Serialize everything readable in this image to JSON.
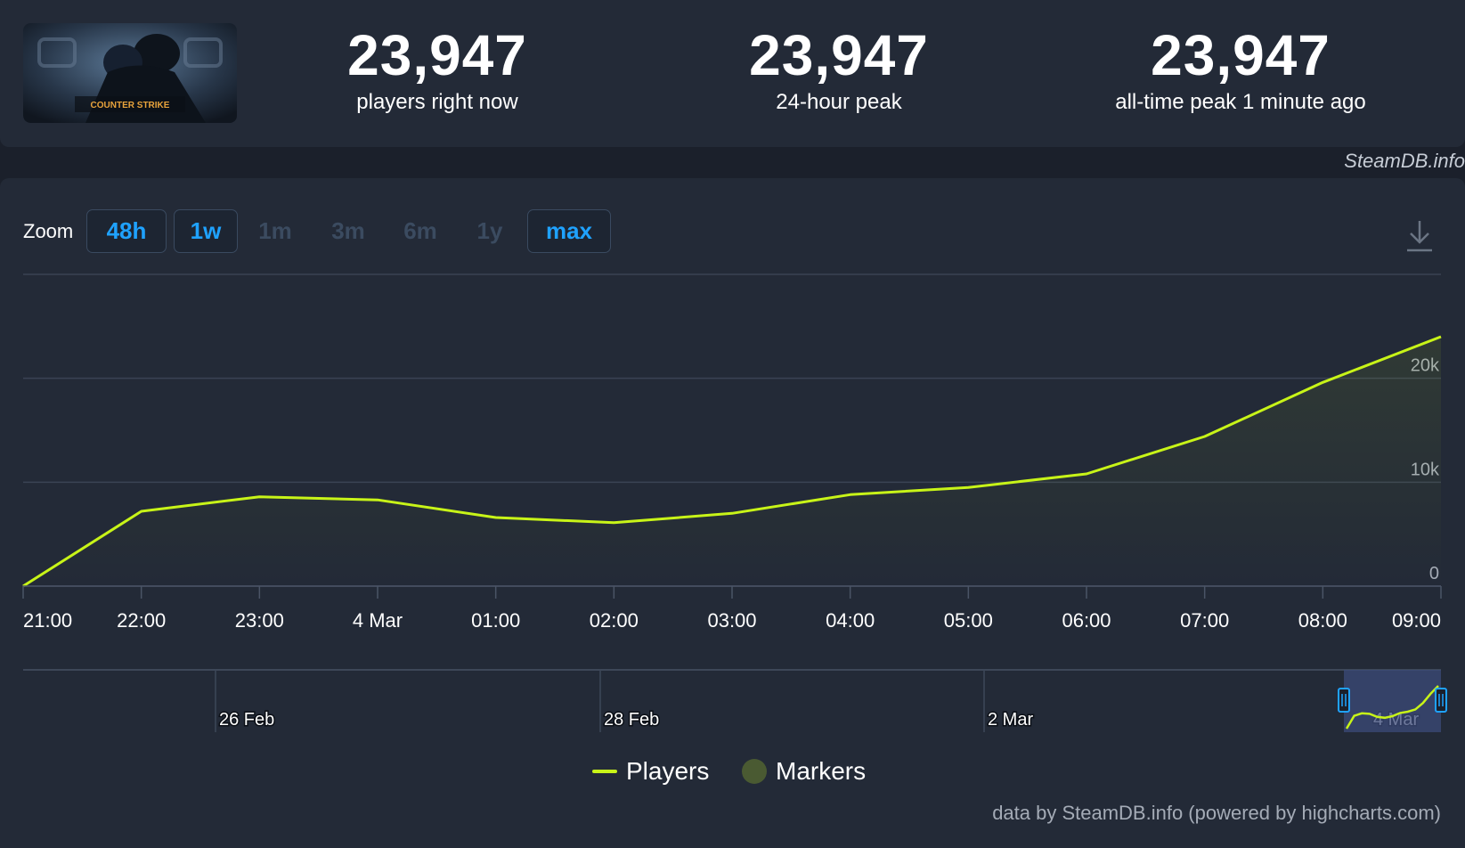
{
  "stats": {
    "current": {
      "value": "23,947",
      "label": "players right now"
    },
    "peak24h": {
      "value": "23,947",
      "label": "24-hour peak"
    },
    "alltime": {
      "value": "23,947",
      "label": "all-time peak 1 minute ago"
    }
  },
  "logo_text": "COUNTER STRIKE",
  "credit": "SteamDB.info",
  "zoom": {
    "label": "Zoom",
    "buttons": [
      {
        "label": "48h",
        "active": true
      },
      {
        "label": "1w",
        "active": true
      },
      {
        "label": "1m",
        "active": false
      },
      {
        "label": "3m",
        "active": false
      },
      {
        "label": "6m",
        "active": false
      },
      {
        "label": "1y",
        "active": false
      },
      {
        "label": "max",
        "active": true
      }
    ]
  },
  "icons": {
    "download": "download-icon"
  },
  "colors": {
    "series": "#c8f418",
    "accent": "#1fa2ff",
    "marker": "#4a5a32"
  },
  "chart_data": {
    "type": "line",
    "x": [
      "21:00",
      "22:00",
      "23:00",
      "4 Mar",
      "01:00",
      "02:00",
      "03:00",
      "04:00",
      "05:00",
      "06:00",
      "07:00",
      "08:00",
      "09:00"
    ],
    "series": [
      {
        "name": "Players",
        "values": [
          0,
          7200,
          8600,
          8300,
          6600,
          6100,
          7000,
          8800,
          9500,
          10800,
          14400,
          19600,
          24000
        ]
      }
    ],
    "y_ticks": [
      "0",
      "10k",
      "20k"
    ],
    "ylim": [
      0,
      30000
    ],
    "grid": true,
    "navigator": {
      "labels": [
        "26 Feb",
        "28 Feb",
        "2 Mar",
        "4 Mar"
      ]
    },
    "legend": {
      "position": "bottom-center",
      "items": [
        "Players",
        "Markers"
      ]
    }
  },
  "footer": "data by SteamDB.info (powered by highcharts.com)"
}
